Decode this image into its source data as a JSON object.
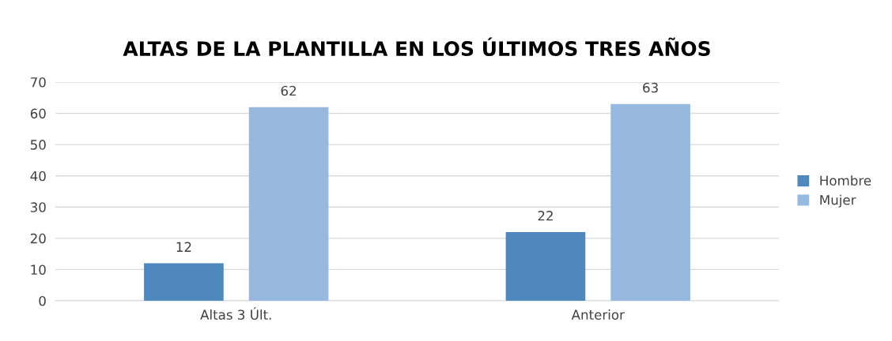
{
  "chart_data": {
    "type": "bar",
    "title": "ALTAS DE LA PLANTILLA EN LOS ÚLTIMOS TRES AÑOS",
    "categories": [
      "Altas 3 Últ.",
      "Anterior"
    ],
    "series": [
      {
        "name": "Hombre",
        "color": "#4f88bd",
        "values": [
          12,
          22
        ]
      },
      {
        "name": "Mujer",
        "color": "#97b9e0",
        "values": [
          62,
          63
        ]
      }
    ],
    "ylim": [
      0,
      70
    ],
    "yticks": [
      0,
      10,
      20,
      30,
      40,
      50,
      60,
      70
    ],
    "grid": "y",
    "legend": "right",
    "data_labels": true
  }
}
